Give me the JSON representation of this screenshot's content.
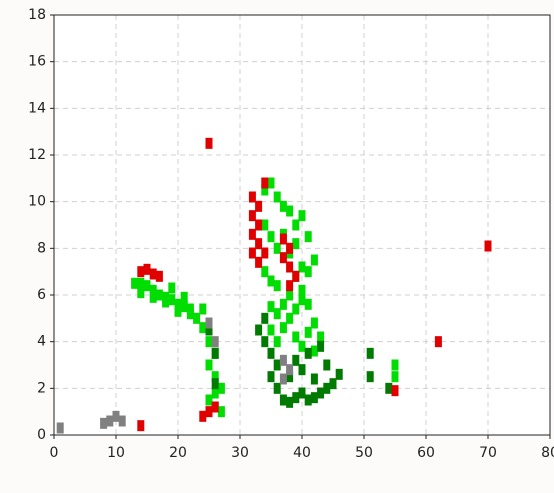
{
  "chart_data": {
    "type": "scatter",
    "xlim": [
      0,
      80
    ],
    "ylim": [
      0,
      18
    ],
    "xticks": [
      0,
      10,
      20,
      30,
      40,
      50,
      60,
      70,
      80
    ],
    "yticks": [
      0,
      2,
      4,
      6,
      8,
      10,
      12,
      14,
      16,
      18
    ],
    "grid": true,
    "series": [
      {
        "color": "#00dd00",
        "x": [
          13,
          14,
          15,
          16,
          17,
          18,
          19,
          20,
          21,
          22,
          14,
          16,
          18,
          20,
          22,
          23,
          24,
          25,
          25,
          26,
          26,
          27,
          25,
          26,
          27,
          34,
          35,
          36,
          37,
          38,
          39,
          40,
          41,
          42,
          34,
          35,
          36,
          37,
          38,
          39,
          40,
          41,
          34,
          35,
          36,
          38,
          39,
          40,
          35,
          36,
          37,
          38,
          39,
          40,
          41,
          42,
          43,
          35,
          36,
          37,
          39,
          40,
          41,
          42,
          55,
          55,
          19,
          21,
          24,
          26
        ],
        "y": [
          6.5,
          6.5,
          6.4,
          6.2,
          6.0,
          5.9,
          5.8,
          5.6,
          5.5,
          5.4,
          6.1,
          5.9,
          5.7,
          5.3,
          5.2,
          5.0,
          4.6,
          4.0,
          3.0,
          3.5,
          2.5,
          2.0,
          1.5,
          1.2,
          1.0,
          10.5,
          10.8,
          10.2,
          9.8,
          9.6,
          9.0,
          9.4,
          8.5,
          7.5,
          9.0,
          8.5,
          8.0,
          8.6,
          7.8,
          8.2,
          7.2,
          7.0,
          7.0,
          6.6,
          6.4,
          6.0,
          6.8,
          6.2,
          5.5,
          5.2,
          5.6,
          5.0,
          5.4,
          5.8,
          5.6,
          4.8,
          4.2,
          4.5,
          4.0,
          4.6,
          4.2,
          3.8,
          4.4,
          3.6,
          3.0,
          2.5,
          6.3,
          5.9,
          5.4,
          1.8
        ]
      },
      {
        "color": "#007a00",
        "x": [
          34,
          35,
          36,
          35,
          36,
          37,
          38,
          39,
          40,
          41,
          42,
          43,
          44,
          45,
          46,
          38,
          40,
          42,
          44,
          41,
          43,
          39,
          34,
          33,
          26,
          26,
          25,
          51,
          51,
          54
        ],
        "y": [
          4.0,
          3.5,
          3.0,
          2.5,
          2.0,
          1.5,
          1.4,
          1.6,
          1.8,
          1.5,
          1.6,
          1.8,
          2.0,
          2.2,
          2.6,
          2.5,
          2.8,
          2.4,
          3.0,
          3.5,
          3.8,
          3.2,
          5.0,
          4.5,
          3.5,
          2.2,
          4.5,
          2.5,
          3.5,
          2.0
        ]
      },
      {
        "color": "#e00000",
        "x": [
          14,
          15,
          16,
          17,
          32,
          33,
          32,
          33,
          32,
          33,
          32,
          33,
          34,
          37,
          38,
          37,
          38,
          39,
          25,
          24,
          14,
          70,
          62,
          25,
          34,
          38,
          55,
          26
        ],
        "y": [
          7.0,
          7.1,
          6.9,
          6.8,
          10.2,
          9.8,
          9.4,
          9.0,
          8.6,
          8.2,
          7.8,
          7.4,
          7.8,
          8.4,
          8.0,
          7.6,
          7.2,
          6.8,
          1.0,
          0.8,
          0.4,
          8.1,
          4.0,
          12.5,
          10.8,
          6.4,
          1.9,
          1.2
        ]
      },
      {
        "color": "#808080",
        "x": [
          37,
          38,
          37,
          25,
          26,
          9,
          10,
          11,
          8,
          1
        ],
        "y": [
          3.2,
          2.8,
          2.4,
          4.8,
          4.0,
          0.6,
          0.8,
          0.6,
          0.5,
          0.3
        ]
      }
    ]
  }
}
